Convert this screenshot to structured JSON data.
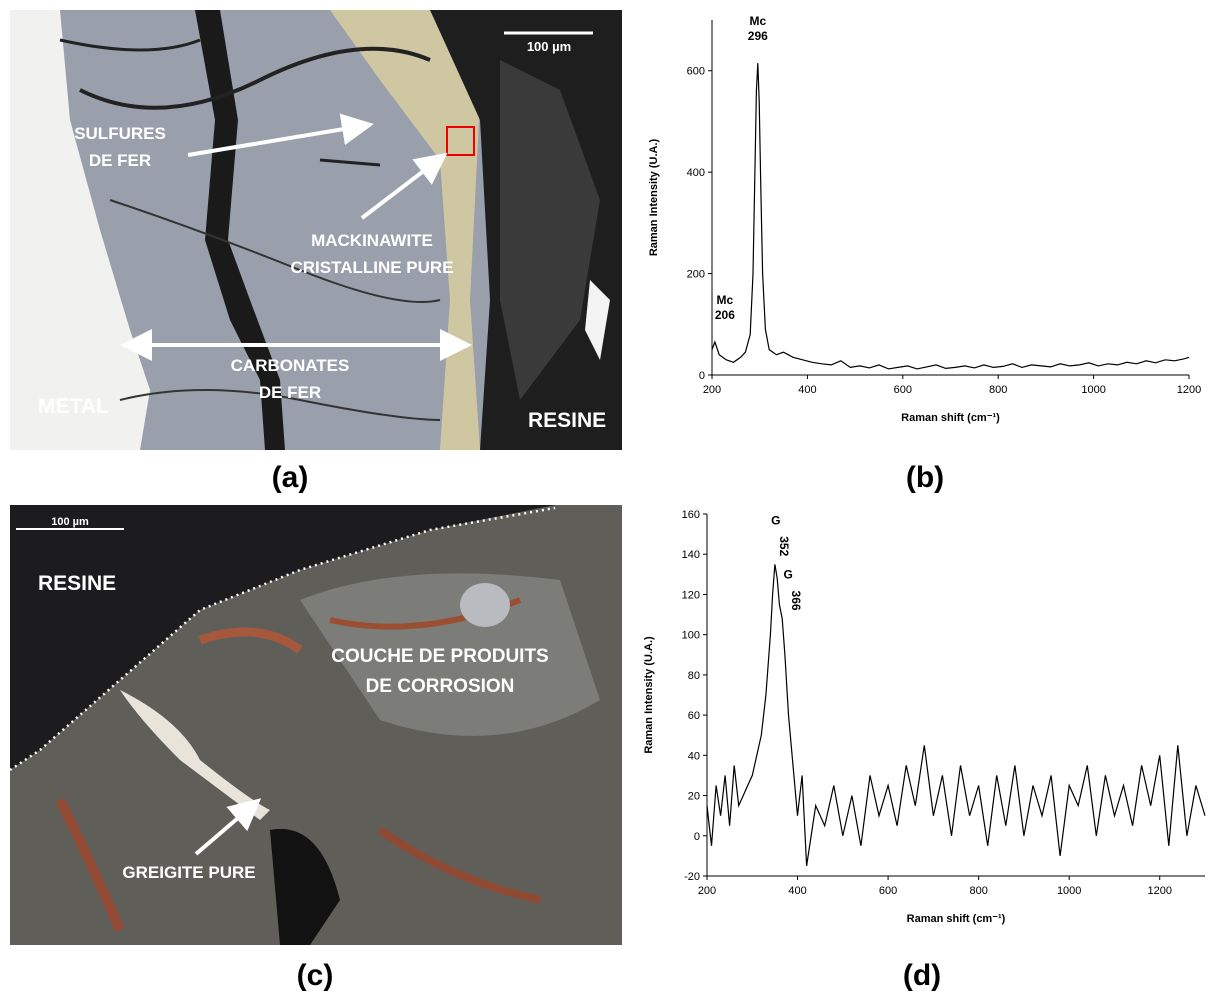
{
  "panels": [
    {
      "label": "(a)",
      "scale_bar": "100 µm",
      "annotations": [
        [
          "SULFURES",
          "DE FER"
        ],
        [
          "MACKINAWITE",
          "CRISTALLINE PURE"
        ],
        [
          "CARBONATES",
          "DE FER"
        ],
        [
          "METAL"
        ],
        [
          "RESINE"
        ]
      ]
    },
    {
      "label": "(c)",
      "scale_bar": "100 µm",
      "annotations": [
        [
          "RESINE"
        ],
        [
          "COUCHE DE PRODUITS",
          "DE CORROSION"
        ],
        [
          "GREIGITE PURE"
        ]
      ]
    }
  ],
  "chart_data": [
    {
      "type": "line",
      "panel_label": "(b)",
      "xlabel": "Raman shift (cm⁻¹)",
      "ylabel": "Raman Intensity (U.A.)",
      "color": "#000000",
      "xlim": [
        200,
        1200
      ],
      "ylim": [
        0,
        700
      ],
      "xticks": [
        200,
        400,
        600,
        800,
        1000,
        1200
      ],
      "yticks": [
        0,
        200,
        400,
        600
      ],
      "x": [
        200,
        206,
        215,
        230,
        245,
        260,
        270,
        280,
        286,
        290,
        293,
        296,
        299,
        302,
        306,
        312,
        320,
        335,
        350,
        370,
        390,
        410,
        430,
        450,
        470,
        490,
        510,
        530,
        550,
        570,
        590,
        610,
        630,
        650,
        670,
        690,
        710,
        730,
        750,
        770,
        790,
        810,
        830,
        850,
        870,
        890,
        910,
        930,
        950,
        970,
        990,
        1010,
        1030,
        1050,
        1070,
        1090,
        1110,
        1130,
        1150,
        1170,
        1190,
        1200
      ],
      "values": [
        50,
        65,
        40,
        30,
        25,
        35,
        45,
        80,
        200,
        400,
        560,
        615,
        540,
        380,
        200,
        90,
        50,
        40,
        45,
        35,
        30,
        25,
        22,
        20,
        28,
        15,
        18,
        14,
        20,
        12,
        15,
        18,
        12,
        16,
        20,
        13,
        15,
        18,
        14,
        20,
        15,
        17,
        22,
        15,
        20,
        18,
        16,
        22,
        18,
        20,
        24,
        18,
        22,
        20,
        25,
        22,
        28,
        24,
        30,
        28,
        32,
        35
      ],
      "annotations": [
        {
          "name": "Mc",
          "x": 296
        },
        {
          "name": "Mc",
          "x": 206
        }
      ]
    },
    {
      "type": "line",
      "panel_label": "(d)",
      "xlabel": "Raman shift (cm⁻¹)",
      "ylabel": "Raman Intensity (U.A.)",
      "color": "#000000",
      "xlim": [
        200,
        1300
      ],
      "ylim": [
        -20,
        160
      ],
      "xticks": [
        200,
        400,
        600,
        800,
        1000,
        1200
      ],
      "yticks": [
        -20,
        0,
        20,
        40,
        60,
        80,
        100,
        120,
        140,
        160
      ],
      "x": [
        200,
        210,
        220,
        230,
        240,
        250,
        260,
        270,
        280,
        290,
        300,
        310,
        320,
        330,
        340,
        345,
        350,
        355,
        360,
        366,
        372,
        380,
        390,
        400,
        410,
        420,
        440,
        460,
        480,
        500,
        520,
        540,
        560,
        580,
        600,
        620,
        640,
        660,
        680,
        700,
        720,
        740,
        760,
        780,
        800,
        820,
        840,
        860,
        880,
        900,
        920,
        940,
        960,
        980,
        1000,
        1020,
        1040,
        1060,
        1080,
        1100,
        1120,
        1140,
        1160,
        1180,
        1200,
        1220,
        1240,
        1260,
        1280,
        1300
      ],
      "values": [
        15,
        -5,
        25,
        10,
        30,
        5,
        35,
        15,
        20,
        25,
        30,
        40,
        50,
        70,
        100,
        120,
        135,
        128,
        115,
        108,
        90,
        60,
        35,
        10,
        30,
        -15,
        15,
        5,
        25,
        0,
        20,
        -5,
        30,
        10,
        25,
        5,
        35,
        15,
        45,
        10,
        30,
        0,
        35,
        10,
        25,
        -5,
        30,
        5,
        35,
        0,
        25,
        10,
        30,
        -10,
        25,
        15,
        35,
        0,
        30,
        10,
        25,
        5,
        35,
        15,
        40,
        -5,
        45,
        0,
        25,
        10
      ],
      "annotations": [
        {
          "name": "G",
          "x": 352
        },
        {
          "name": "G",
          "x": 366
        }
      ]
    }
  ]
}
